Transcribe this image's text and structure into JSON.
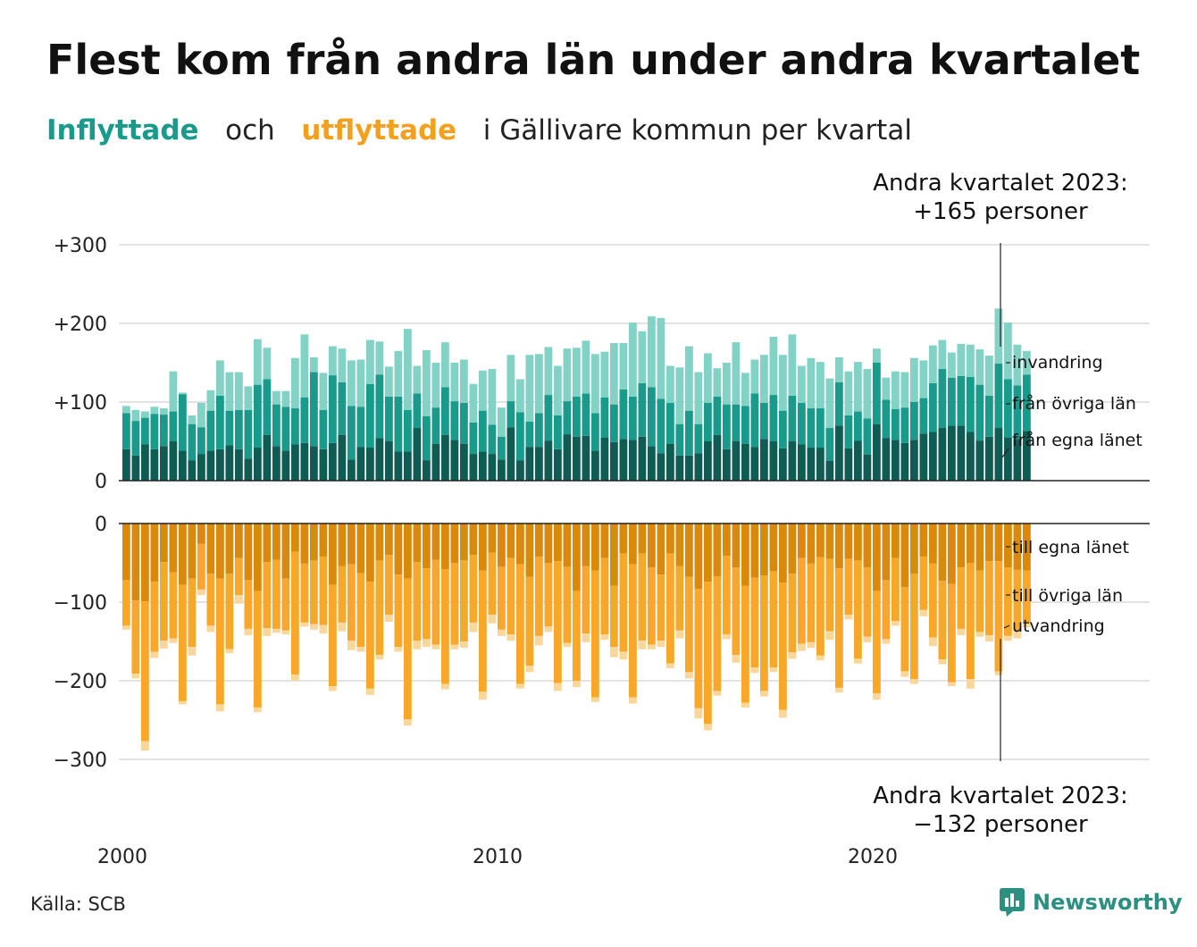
{
  "title": "Flest kom från andra län under andra kvartalet",
  "subtitle": {
    "in_word": "Inflyttade",
    "and_word": "och",
    "out_word": "utflyttade",
    "rest": "i Gällivare kommun per kvartal"
  },
  "colors": {
    "in_own": "#0f5c54",
    "in_other": "#1a9a8a",
    "in_immig": "#83d2c6",
    "out_own": "#d98a0c",
    "out_other": "#f7a82a",
    "out_emig": "#f9d79a",
    "grid": "#e3e3e3",
    "axis": "#222222"
  },
  "source": "Källa: SCB",
  "brand": {
    "name": "Newsworthy",
    "icon": "newsworthy-chart-icon"
  },
  "chart_data": {
    "type": "bar",
    "stacked": true,
    "x_ticks": [
      "2000",
      "2010",
      "2020"
    ],
    "top_panel": {
      "y_ticks": [
        "+300",
        "+200",
        "+100",
        "0"
      ],
      "ylim": [
        0,
        300
      ],
      "series": [
        {
          "name": "från egna länet",
          "values": [
            40,
            32,
            46,
            40,
            44,
            50,
            38,
            26,
            34,
            38,
            40,
            45,
            40,
            28,
            42,
            58,
            44,
            38,
            46,
            48,
            44,
            40,
            48,
            58,
            27,
            43,
            42,
            54,
            50,
            37,
            37,
            67,
            26,
            47,
            58,
            52,
            47,
            34,
            37,
            34,
            27,
            68,
            26,
            43,
            43,
            51,
            40,
            59,
            56,
            57,
            38,
            55,
            49,
            53,
            52,
            56,
            44,
            35,
            47,
            32,
            32,
            35,
            50,
            58,
            40,
            50,
            47,
            43,
            53,
            50,
            41,
            50,
            46,
            42,
            42,
            25,
            70,
            41,
            51,
            33,
            72,
            54,
            52,
            48,
            52,
            60,
            62,
            67,
            70,
            70,
            62,
            51,
            56,
            67,
            55,
            53,
            63
          ]
        },
        {
          "name": "från övriga län",
          "values": [
            46,
            44,
            34,
            45,
            40,
            38,
            72,
            46,
            34,
            51,
            68,
            44,
            50,
            62,
            80,
            71,
            53,
            56,
            46,
            58,
            94,
            50,
            86,
            67,
            68,
            51,
            81,
            81,
            57,
            70,
            53,
            44,
            56,
            46,
            61,
            49,
            52,
            40,
            52,
            37,
            29,
            33,
            61,
            32,
            43,
            58,
            43,
            42,
            51,
            54,
            48,
            51,
            48,
            63,
            55,
            68,
            75,
            69,
            52,
            40,
            57,
            37,
            49,
            49,
            57,
            47,
            48,
            68,
            46,
            59,
            48,
            58,
            53,
            50,
            50,
            42,
            55,
            42,
            37,
            46,
            78,
            49,
            39,
            45,
            48,
            45,
            62,
            75,
            61,
            63,
            70,
            71,
            52,
            82,
            74,
            68,
            72
          ]
        },
        {
          "name": "invandring",
          "values": [
            9,
            14,
            8,
            9,
            8,
            51,
            2,
            11,
            31,
            26,
            45,
            49,
            48,
            30,
            58,
            40,
            17,
            20,
            64,
            80,
            19,
            47,
            37,
            43,
            58,
            60,
            56,
            42,
            38,
            58,
            103,
            35,
            84,
            57,
            57,
            49,
            55,
            49,
            51,
            71,
            37,
            59,
            42,
            85,
            75,
            61,
            63,
            67,
            62,
            67,
            75,
            58,
            78,
            59,
            94,
            66,
            90,
            103,
            47,
            72,
            82,
            66,
            63,
            36,
            53,
            79,
            42,
            43,
            61,
            74,
            71,
            78,
            47,
            64,
            59,
            63,
            32,
            56,
            63,
            63,
            18,
            28,
            48,
            45,
            56,
            48,
            48,
            37,
            32,
            41,
            41,
            45,
            51,
            70,
            72,
            52,
            30
          ]
        }
      ],
      "direct_labels": [
        "invandring",
        "från övriga län",
        "från egna länet"
      ]
    },
    "bottom_panel": {
      "y_ticks": [
        "0",
        "−100",
        "−200",
        "−300"
      ],
      "ylim": [
        -300,
        0
      ],
      "series": [
        {
          "name": "till egna länet",
          "values": [
            -72,
            -98,
            -99,
            -74,
            -49,
            -62,
            -78,
            -70,
            -26,
            -64,
            -70,
            -64,
            -44,
            -72,
            -86,
            -49,
            -46,
            -70,
            -36,
            -51,
            -47,
            -42,
            -78,
            -54,
            -52,
            -63,
            -74,
            -47,
            -40,
            -65,
            -70,
            -49,
            -57,
            -46,
            -58,
            -50,
            -47,
            -40,
            -60,
            -37,
            -55,
            -44,
            -52,
            -68,
            -42,
            -50,
            -48,
            -55,
            -86,
            -54,
            -60,
            -44,
            -79,
            -38,
            -52,
            -38,
            -56,
            -65,
            -38,
            -54,
            -68,
            -83,
            -74,
            -67,
            -41,
            -56,
            -79,
            -69,
            -66,
            -61,
            -75,
            -64,
            -44,
            -51,
            -43,
            -45,
            -57,
            -45,
            -47,
            -56,
            -86,
            -72,
            -44,
            -81,
            -64,
            -42,
            -51,
            -73,
            -77,
            -56,
            -50,
            -60,
            -48,
            -48,
            -56,
            -59,
            -60
          ]
        },
        {
          "name": "till övriga län",
          "values": [
            -58,
            -93,
            -178,
            -89,
            -100,
            -84,
            -148,
            -87,
            -58,
            -66,
            -160,
            -96,
            -47,
            -62,
            -148,
            -84,
            -88,
            -66,
            -156,
            -75,
            -81,
            -87,
            -129,
            -72,
            -97,
            -94,
            -136,
            -120,
            -76,
            -92,
            -179,
            -100,
            -90,
            -108,
            -146,
            -104,
            -103,
            -86,
            -154,
            -79,
            -80,
            -97,
            -152,
            -113,
            -101,
            -81,
            -155,
            -97,
            -114,
            -86,
            -161,
            -97,
            -78,
            -125,
            -169,
            -111,
            -98,
            -84,
            -140,
            -82,
            -121,
            -152,
            -181,
            -146,
            -100,
            -111,
            -149,
            -114,
            -147,
            -122,
            -162,
            -100,
            -109,
            -100,
            -125,
            -92,
            -152,
            -71,
            -125,
            -88,
            -130,
            -75,
            -80,
            -107,
            -134,
            -68,
            -94,
            -100,
            -125,
            -78,
            -148,
            -78,
            -94,
            -140,
            -87,
            -77,
            -67
          ]
        },
        {
          "name": "utvandring",
          "values": [
            -5,
            -6,
            -12,
            -8,
            -10,
            -6,
            -4,
            -11,
            -7,
            -8,
            -9,
            -5,
            -11,
            -8,
            -6,
            -10,
            -5,
            -5,
            -8,
            -5,
            -7,
            -11,
            -6,
            -11,
            -12,
            -6,
            -8,
            -6,
            -9,
            -6,
            -8,
            -11,
            -10,
            -6,
            -7,
            -6,
            -8,
            -12,
            -10,
            -11,
            -8,
            -8,
            -6,
            -8,
            -12,
            -7,
            -10,
            -5,
            -8,
            -11,
            -6,
            -7,
            -13,
            -10,
            -8,
            -11,
            -6,
            -8,
            -6,
            -10,
            -8,
            -13,
            -8,
            -6,
            -6,
            -10,
            -6,
            -7,
            -7,
            -6,
            -10,
            -8,
            -9,
            -7,
            -6,
            -11,
            -6,
            -6,
            -6,
            -7,
            -8,
            -6,
            -6,
            -7,
            -6,
            -8,
            -11,
            -6,
            -5,
            -8,
            -12,
            -6,
            -8,
            -5,
            -6,
            -10,
            -5
          ]
        }
      ],
      "direct_labels": [
        "till egna länet",
        "till övriga län",
        "utvandring"
      ]
    },
    "annotations": [
      {
        "line1": "Andra kvartalet 2023:",
        "line2": "+165 personer"
      },
      {
        "line1": "Andra kvartalet 2023:",
        "line2": "−132 personer"
      }
    ],
    "grid": true
  }
}
